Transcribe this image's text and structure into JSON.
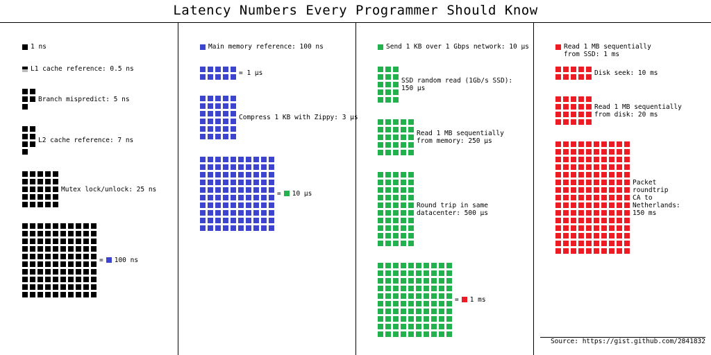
{
  "title": "Latency Numbers Every Programmer Should Know",
  "colors": {
    "black": "#000000",
    "blue": "#3d45cf",
    "green": "#22b14c",
    "red": "#ed1c24"
  },
  "columns": [
    {
      "items": [
        {
          "count": 1,
          "cols": 1,
          "color": "black",
          "label": [
            "1 ns"
          ]
        },
        {
          "count": 1,
          "cols": 1,
          "color": "black",
          "half": true,
          "label": [
            "L1 cache reference: 0.5 ns"
          ]
        },
        {
          "count": 5,
          "cols": 2,
          "color": "black",
          "label": [
            "Branch mispredict: 5 ns"
          ]
        },
        {
          "count": 7,
          "cols": 2,
          "color": "black",
          "label": [
            "L2 cache reference: 7 ns"
          ]
        },
        {
          "count": 25,
          "cols": 5,
          "color": "black",
          "label": [
            "Mutex lock/unlock: 25 ns"
          ]
        },
        {
          "count": 100,
          "cols": 10,
          "color": "black",
          "equals": {
            "sign": "=",
            "color": "blue",
            "text": "100 ns"
          }
        }
      ]
    },
    {
      "items": [
        {
          "count": 1,
          "cols": 1,
          "color": "blue",
          "label": [
            "Main memory reference: 100 ns"
          ]
        },
        {
          "count": 10,
          "cols": 5,
          "color": "blue",
          "equals": {
            "sign": "= 1 µs"
          }
        },
        {
          "count": 30,
          "cols": 5,
          "color": "blue",
          "label": [
            "Compress 1 KB with Zippy: 3 µs"
          ]
        },
        {
          "count": 100,
          "cols": 10,
          "color": "blue",
          "equals": {
            "sign": "=",
            "color": "green",
            "text": "10 µs"
          }
        }
      ]
    },
    {
      "items": [
        {
          "count": 1,
          "cols": 1,
          "color": "green",
          "label": [
            "Send 1 KB over 1 Gbps network: 10 µs"
          ]
        },
        {
          "count": 15,
          "cols": 3,
          "color": "green",
          "label": [
            "SSD random read (1Gb/s SSD):",
            "150 µs"
          ]
        },
        {
          "count": 25,
          "cols": 5,
          "color": "green",
          "label": [
            "Read 1 MB sequentially",
            "from memory: 250 µs"
          ]
        },
        {
          "count": 50,
          "cols": 5,
          "color": "green",
          "label": [
            "Round trip in same",
            "datacenter: 500 µs"
          ]
        },
        {
          "count": 100,
          "cols": 10,
          "color": "green",
          "equals": {
            "sign": "=",
            "color": "red",
            "text": "1 ms"
          }
        }
      ]
    },
    {
      "items": [
        {
          "count": 1,
          "cols": 1,
          "color": "red",
          "label": [
            "Read 1 MB sequentially",
            "from SSD: 1 ms"
          ]
        },
        {
          "count": 10,
          "cols": 5,
          "color": "red",
          "label": [
            "Disk seek: 10 ms"
          ]
        },
        {
          "count": 20,
          "cols": 5,
          "color": "red",
          "label": [
            "Read 1 MB sequentially",
            "from disk: 20 ms"
          ]
        },
        {
          "count": 150,
          "cols": 10,
          "color": "red",
          "label": [
            "Packet",
            "roundtrip",
            "CA to",
            "Netherlands:",
            "150 ms"
          ]
        }
      ]
    }
  ],
  "source": "Source: https://gist.github.com/2841832"
}
